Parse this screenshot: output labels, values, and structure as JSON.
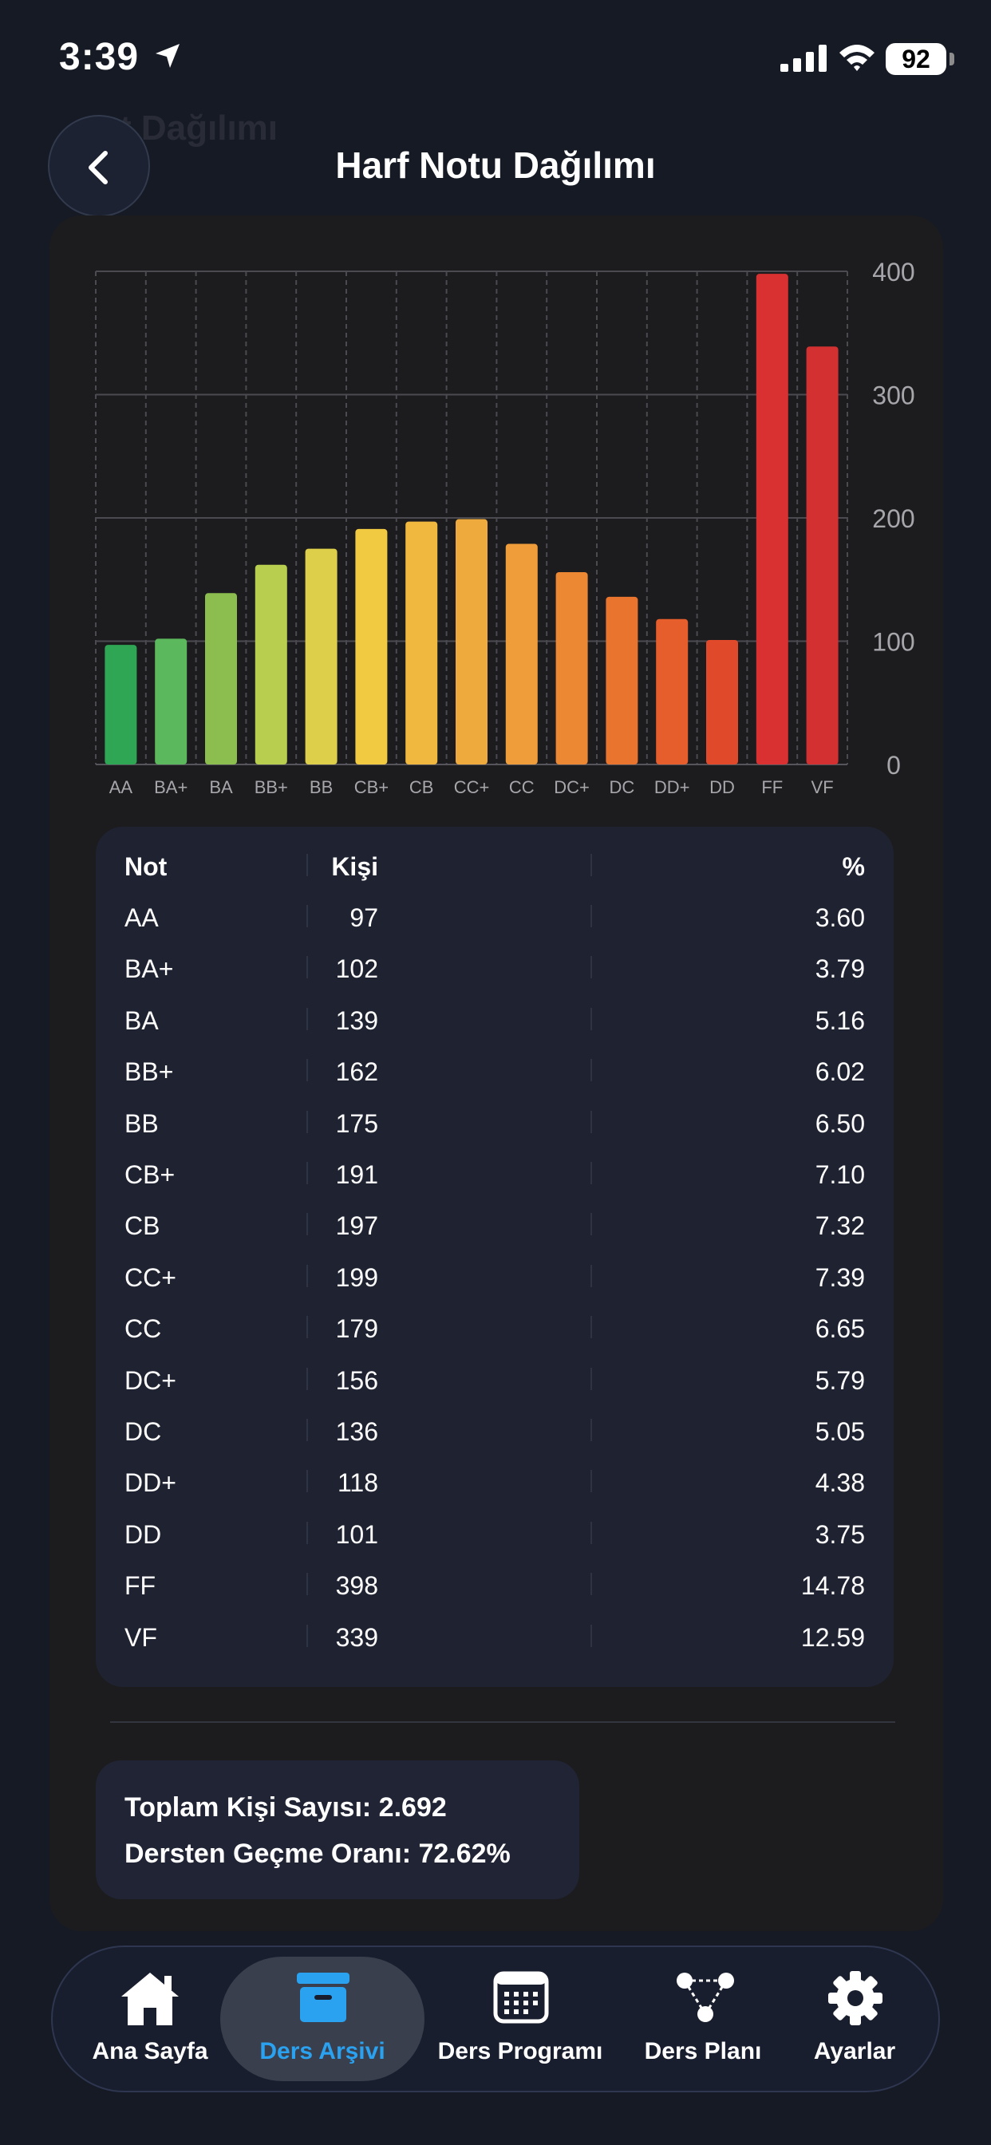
{
  "status_bar": {
    "time": "3:39",
    "battery": "92"
  },
  "header": {
    "ghost_title": "t Dağılımı",
    "title": "Harf Notu Dağılımı"
  },
  "colors": {
    "bars": [
      "#2ea653",
      "#5cb85c",
      "#8bbd4f",
      "#b8ce4f",
      "#ddcf4a",
      "#f2ca42",
      "#f0b83f",
      "#efaa3e",
      "#ee9d3a",
      "#ec8734",
      "#e9742e",
      "#e55e2c",
      "#e04a2a",
      "#d93131",
      "#d33131"
    ],
    "active_tab": "#2aa2f0"
  },
  "chart_data": {
    "type": "bar",
    "categories": [
      "AA",
      "BA+",
      "BA",
      "BB+",
      "BB",
      "CB+",
      "CB",
      "CC+",
      "CC",
      "DC+",
      "DC",
      "DD+",
      "DD",
      "FF",
      "VF"
    ],
    "values": [
      97,
      102,
      139,
      162,
      175,
      191,
      197,
      199,
      179,
      156,
      136,
      118,
      101,
      398,
      339
    ],
    "y_ticks": [
      "400",
      "300",
      "200",
      "100",
      "0"
    ],
    "ylim": [
      0,
      400
    ],
    "grid": true,
    "y_axis_position": "right"
  },
  "table": {
    "headers": [
      "Not",
      "Kişi",
      "%"
    ],
    "rows": [
      [
        "AA",
        "97",
        "3.60"
      ],
      [
        "BA+",
        "102",
        "3.79"
      ],
      [
        "BA",
        "139",
        "5.16"
      ],
      [
        "BB+",
        "162",
        "6.02"
      ],
      [
        "BB",
        "175",
        "6.50"
      ],
      [
        "CB+",
        "191",
        "7.10"
      ],
      [
        "CB",
        "197",
        "7.32"
      ],
      [
        "CC+",
        "199",
        "7.39"
      ],
      [
        "CC",
        "179",
        "6.65"
      ],
      [
        "DC+",
        "156",
        "5.79"
      ],
      [
        "DC",
        "136",
        "5.05"
      ],
      [
        "DD+",
        "118",
        "4.38"
      ],
      [
        "DD",
        "101",
        "3.75"
      ],
      [
        "FF",
        "398",
        "14.78"
      ],
      [
        "VF",
        "339",
        "12.59"
      ]
    ]
  },
  "summary": {
    "total": "Toplam Kişi Sayısı: 2.692",
    "pass_rate": "Dersten Geçme Oranı: 72.62%"
  },
  "tab_bar": {
    "items": [
      {
        "label": "Ana Sayfa",
        "icon": "home-icon"
      },
      {
        "label": "Ders Arşivi",
        "icon": "archive-icon",
        "active": true
      },
      {
        "label": "Ders Programı",
        "icon": "calendar-icon"
      },
      {
        "label": "Ders Planı",
        "icon": "graph-icon"
      },
      {
        "label": "Ayarlar",
        "icon": "gear-icon"
      }
    ]
  }
}
